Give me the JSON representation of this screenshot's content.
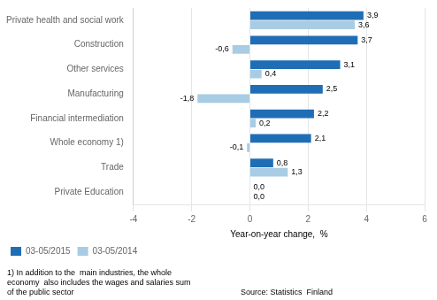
{
  "chart_data": {
    "type": "bar",
    "orientation": "horizontal",
    "categories": [
      "Private Education",
      "Trade",
      "Whole economy 1)",
      "Financial intermediation",
      "Manufacturing",
      "Other services",
      "Construction",
      "Private health and social work"
    ],
    "series": [
      {
        "name": "03-05/2015",
        "color": "#1f6eb5",
        "values": [
          0.0,
          0.8,
          2.1,
          2.2,
          2.5,
          3.1,
          3.7,
          3.9
        ],
        "value_labels": [
          "0,0",
          "0,8",
          "2,1",
          "2,2",
          "2,5",
          "3,1",
          "3,7",
          "3,9"
        ]
      },
      {
        "name": "03-05/2014",
        "color": "#a8cce4",
        "values": [
          0.0,
          1.3,
          -0.1,
          0.2,
          -1.8,
          0.4,
          -0.6,
          3.6
        ],
        "value_labels": [
          "0,0",
          "1,3",
          "-0,1",
          "0,2",
          "-1,8",
          "0,4",
          "-0,6",
          "3,6"
        ]
      }
    ],
    "xlabel": "Year-on-year change,  %",
    "xlim": [
      -4,
      6
    ],
    "xticks": [
      -4,
      -2,
      0,
      2,
      4,
      6
    ],
    "grid": true,
    "legend": "lower left",
    "data_labels": true,
    "annotations": [
      "1) In addition to the  main industries, the whole",
      "economy  also includes the wages and salaries sum",
      "of the public sector",
      "Source: Statistics  Finland"
    ]
  }
}
